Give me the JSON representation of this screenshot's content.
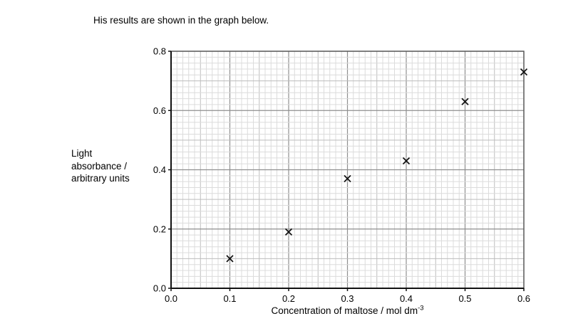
{
  "intro": "His results are shown in the graph below.",
  "chart_data": {
    "type": "scatter",
    "title": "",
    "xlabel": "Concentration of maltose / mol dm⁻³",
    "xlabel_base": "Concentration of maltose / mol dm",
    "xlabel_sup": "-3",
    "ylabel": "Light absorbance / arbitrary units",
    "ylabel_lines": [
      "Light",
      "absorbance /",
      "arbitrary units"
    ],
    "xlim": [
      0,
      0.6
    ],
    "ylim": [
      0,
      0.8
    ],
    "x": [
      0.1,
      0.2,
      0.3,
      0.4,
      0.5,
      0.6
    ],
    "y": [
      0.1,
      0.19,
      0.37,
      0.43,
      0.63,
      0.73
    ],
    "marker": "x",
    "grid": "graph-paper",
    "legend": "none",
    "x_tick_values": [
      0,
      0.1,
      0.2,
      0.3,
      0.4,
      0.5,
      0.6
    ],
    "x_tick_labels": [
      "0.0",
      "0.1",
      "0.2",
      "0.3",
      "0.4",
      "0.5",
      "0.6"
    ],
    "y_tick_values": [
      0,
      0.2,
      0.4,
      0.6,
      0.8
    ],
    "y_tick_labels": [
      "0.0",
      "0.2",
      "0.4",
      "0.6",
      "0.8"
    ],
    "x_minor_step": 0.01,
    "y_minor_step": 0.02,
    "colors": {
      "minor_grid": "#dcdcdc",
      "medium_grid": "#bdbdbd",
      "major_grid": "#8f8f8f",
      "border": "#555555",
      "axis": "#111111",
      "marker": "#111111"
    }
  }
}
